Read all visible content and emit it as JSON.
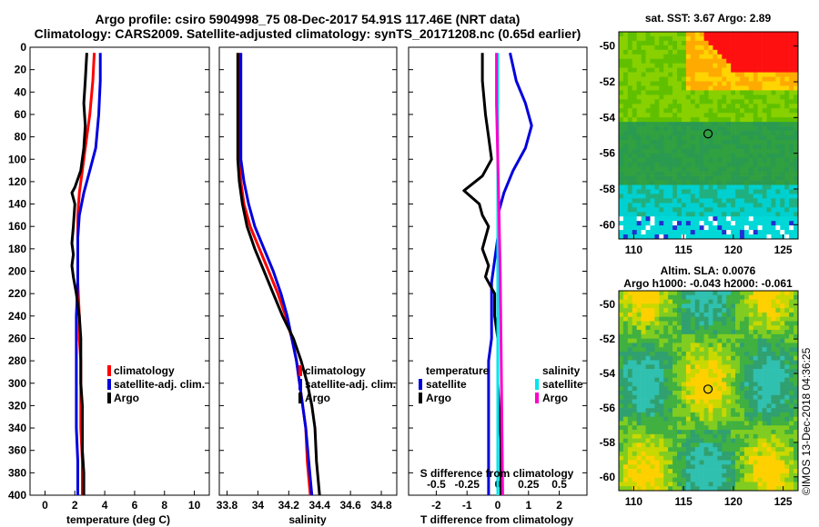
{
  "titles": {
    "line1": "Argo profile: csiro 5904998_75 08-Dec-2017 54.91S 117.46E (NRT data)",
    "line2": "Climatology: CARS2009. Satellite-adjusted climatology: synTS_20171208.nc (0.65d earlier)"
  },
  "colors": {
    "climatology": "#ff0000",
    "satellite": "#0000dd",
    "argo": "#000000",
    "sat_salinity": "#00e5ee",
    "argo_salinity": "#ff00cc"
  },
  "chart_data": [
    {
      "type": "line",
      "name": "temperature",
      "xlabel": "temperature (deg C)",
      "ylabel": "",
      "xlim": [
        -1,
        11
      ],
      "ylim": [
        400,
        0
      ],
      "xticks": [
        "0",
        "2",
        "4",
        "6",
        "8",
        "10"
      ],
      "xtick_values": [
        0,
        2,
        4,
        6,
        8,
        10
      ],
      "yticks": [
        "0",
        "20",
        "40",
        "60",
        "80",
        "100",
        "120",
        "140",
        "160",
        "180",
        "200",
        "220",
        "240",
        "260",
        "280",
        "300",
        "320",
        "340",
        "360",
        "380",
        "400"
      ],
      "legend": [
        "climatology",
        "satellite-adj. clim.",
        "Argo"
      ],
      "series": [
        {
          "name": "climatology",
          "x": [
            3.3,
            3.2,
            3.0,
            2.7,
            2.5,
            2.3,
            2.2,
            2.2,
            2.2,
            2.2,
            2.3,
            2.3,
            2.4,
            2.4,
            2.4,
            2.4,
            2.5,
            2.5
          ],
          "y": [
            5,
            30,
            60,
            90,
            110,
            130,
            150,
            170,
            190,
            210,
            240,
            260,
            280,
            300,
            320,
            340,
            370,
            400
          ]
        },
        {
          "name": "satellite-adj. clim.",
          "x": [
            3.7,
            3.7,
            3.6,
            3.4,
            3.0,
            2.6,
            2.3,
            2.2,
            2.2,
            2.2,
            2.1,
            2.1,
            2.1,
            2.1,
            2.1,
            2.1,
            2.2,
            2.2
          ],
          "y": [
            5,
            30,
            60,
            90,
            110,
            130,
            150,
            170,
            190,
            210,
            240,
            260,
            280,
            300,
            320,
            340,
            370,
            400
          ]
        },
        {
          "name": "Argo",
          "x": [
            2.8,
            2.7,
            2.6,
            2.7,
            2.6,
            2.4,
            2.0,
            1.8,
            2.0,
            1.9,
            1.8,
            1.9,
            1.8,
            1.9,
            2.1,
            2.3,
            2.4,
            2.4,
            2.4,
            2.5,
            2.5,
            2.5,
            2.6,
            2.6
          ],
          "y": [
            5,
            30,
            50,
            70,
            90,
            110,
            125,
            130,
            140,
            160,
            175,
            185,
            195,
            205,
            220,
            240,
            260,
            280,
            300,
            320,
            340,
            360,
            380,
            400
          ]
        }
      ]
    },
    {
      "type": "line",
      "name": "salinity",
      "xlabel": "salinity",
      "xlim": [
        33.75,
        34.9
      ],
      "ylim": [
        400,
        0
      ],
      "xticks": [
        "33.8",
        "34",
        "34.2",
        "34.4",
        "34.6",
        "34.8"
      ],
      "xtick_values": [
        33.8,
        34.0,
        34.2,
        34.4,
        34.6,
        34.8
      ],
      "legend": [
        "climatology",
        "satellite-adj. clim.",
        "Argo"
      ],
      "series": [
        {
          "name": "climatology",
          "x": [
            33.88,
            33.88,
            33.88,
            33.89,
            33.91,
            33.95,
            34.01,
            34.07,
            34.13,
            34.18,
            34.22,
            34.25,
            34.27,
            34.29,
            34.31,
            34.32,
            34.34
          ],
          "y": [
            5,
            50,
            100,
            120,
            140,
            160,
            180,
            200,
            220,
            240,
            260,
            280,
            300,
            320,
            340,
            370,
            400
          ]
        },
        {
          "name": "satellite-adj. clim.",
          "x": [
            33.89,
            33.89,
            33.89,
            33.91,
            33.94,
            33.98,
            34.04,
            34.1,
            34.15,
            34.19,
            34.22,
            34.25,
            34.27,
            34.29,
            34.31,
            34.33,
            34.35
          ],
          "y": [
            5,
            50,
            100,
            120,
            140,
            160,
            180,
            200,
            220,
            240,
            260,
            280,
            300,
            320,
            340,
            370,
            400
          ]
        },
        {
          "name": "Argo",
          "x": [
            33.87,
            33.87,
            33.87,
            33.88,
            33.9,
            33.93,
            33.98,
            34.04,
            34.1,
            34.16,
            34.23,
            34.28,
            34.32,
            34.35,
            34.37,
            34.38,
            34.4
          ],
          "y": [
            5,
            50,
            100,
            120,
            140,
            160,
            180,
            200,
            220,
            240,
            260,
            280,
            300,
            320,
            340,
            370,
            400
          ]
        }
      ]
    },
    {
      "type": "line",
      "name": "difference",
      "xlabel": "T difference from climatology",
      "x2label": "S difference from climatology",
      "xlim": [
        -2.9,
        2.9
      ],
      "ylim": [
        400,
        0
      ],
      "xticks": [
        "-2",
        "-1",
        "0",
        "1",
        "2"
      ],
      "xtick_values": [
        -2,
        -1,
        0,
        1,
        2
      ],
      "x2ticks": [
        "-0.5",
        "-0.25",
        "0",
        "0.25",
        "0.5"
      ],
      "legend_titles": [
        "temperature",
        "salinity"
      ],
      "legend": [
        "satellite",
        "Argo",
        "satellite",
        "Argo"
      ],
      "series": [
        {
          "name": "temperature satellite",
          "x": [
            0.4,
            0.6,
            0.9,
            1.1,
            0.9,
            0.5,
            0.2,
            0.0,
            0.0,
            -0.1,
            -0.2,
            -0.2,
            -0.2,
            -0.3,
            -0.3,
            -0.3,
            -0.3
          ],
          "y": [
            5,
            30,
            50,
            70,
            90,
            110,
            130,
            150,
            170,
            190,
            210,
            240,
            260,
            280,
            300,
            350,
            400
          ]
        },
        {
          "name": "temperature Argo",
          "x": [
            -0.5,
            -0.5,
            -0.4,
            -0.3,
            -0.2,
            -0.5,
            -1.1,
            -0.6,
            -0.5,
            -0.3,
            -0.5,
            -0.3,
            -0.4,
            -0.1,
            -0.1,
            0.0,
            0.0,
            0.1,
            0.1
          ],
          "y": [
            5,
            30,
            60,
            80,
            100,
            115,
            128,
            140,
            150,
            160,
            180,
            195,
            205,
            220,
            240,
            260,
            300,
            350,
            400
          ]
        },
        {
          "name": "salinity satellite",
          "x": [
            0.0,
            0.0,
            0.0,
            0.0,
            0.0,
            0.0,
            0.0
          ],
          "y": [
            5,
            50,
            100,
            150,
            200,
            300,
            400
          ]
        },
        {
          "name": "salinity Argo",
          "x": [
            -0.01,
            -0.01,
            0.0,
            0.01,
            0.02,
            0.03,
            0.04
          ],
          "y": [
            5,
            50,
            100,
            150,
            200,
            300,
            400
          ]
        }
      ]
    }
  ],
  "maps": [
    {
      "title": "sat. SST: 3.67 Argo: 2.89",
      "yticks": [
        "-50",
        "-52",
        "-54",
        "-56",
        "-58",
        "-60"
      ],
      "xticks": [
        "110",
        "115",
        "120",
        "125"
      ]
    },
    {
      "title_line1": "Altim. SLA: 0.0076",
      "title_line2": "Argo h1000: -0.043 h2000: -0.061",
      "yticks": [
        "-50",
        "-52",
        "-54",
        "-56",
        "-58",
        "-60"
      ],
      "xticks": [
        "110",
        "115",
        "120",
        "125"
      ]
    }
  ],
  "watermark": "©IMOS 13-Dec-2018 04:36:25"
}
